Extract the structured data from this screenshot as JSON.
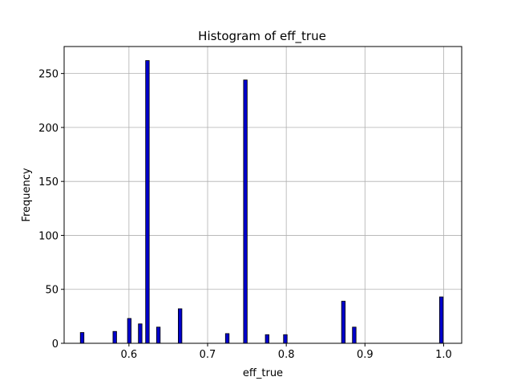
{
  "chart_data": {
    "type": "bar",
    "title": "Histogram of eff_true",
    "xlabel": "eff_true",
    "ylabel": "Frequency",
    "xlim": [
      0.5176,
      1.023
    ],
    "ylim": [
      0,
      275
    ],
    "x_ticks": [
      0.6,
      0.7,
      0.8,
      0.9,
      1.0
    ],
    "x_tick_labels": [
      "0.6",
      "0.7",
      "0.8",
      "0.9",
      "1.0"
    ],
    "y_ticks": [
      0,
      50,
      100,
      150,
      200,
      250
    ],
    "y_tick_labels": [
      "0",
      "50",
      "100",
      "150",
      "200",
      "250"
    ],
    "grid": true,
    "bar_color": "#0000cc",
    "edge_color": "#000000",
    "bin_width": 0.0046,
    "bins": [
      {
        "x": 0.5405,
        "value": 10
      },
      {
        "x": 0.582,
        "value": 11
      },
      {
        "x": 0.6005,
        "value": 23
      },
      {
        "x": 0.6143,
        "value": 18
      },
      {
        "x": 0.6235,
        "value": 262
      },
      {
        "x": 0.6374,
        "value": 15
      },
      {
        "x": 0.665,
        "value": 32
      },
      {
        "x": 0.725,
        "value": 9
      },
      {
        "x": 0.748,
        "value": 244
      },
      {
        "x": 0.7757,
        "value": 8
      },
      {
        "x": 0.7988,
        "value": 8
      },
      {
        "x": 0.8726,
        "value": 39
      },
      {
        "x": 0.8864,
        "value": 15
      },
      {
        "x": 0.9971,
        "value": 43
      }
    ]
  }
}
